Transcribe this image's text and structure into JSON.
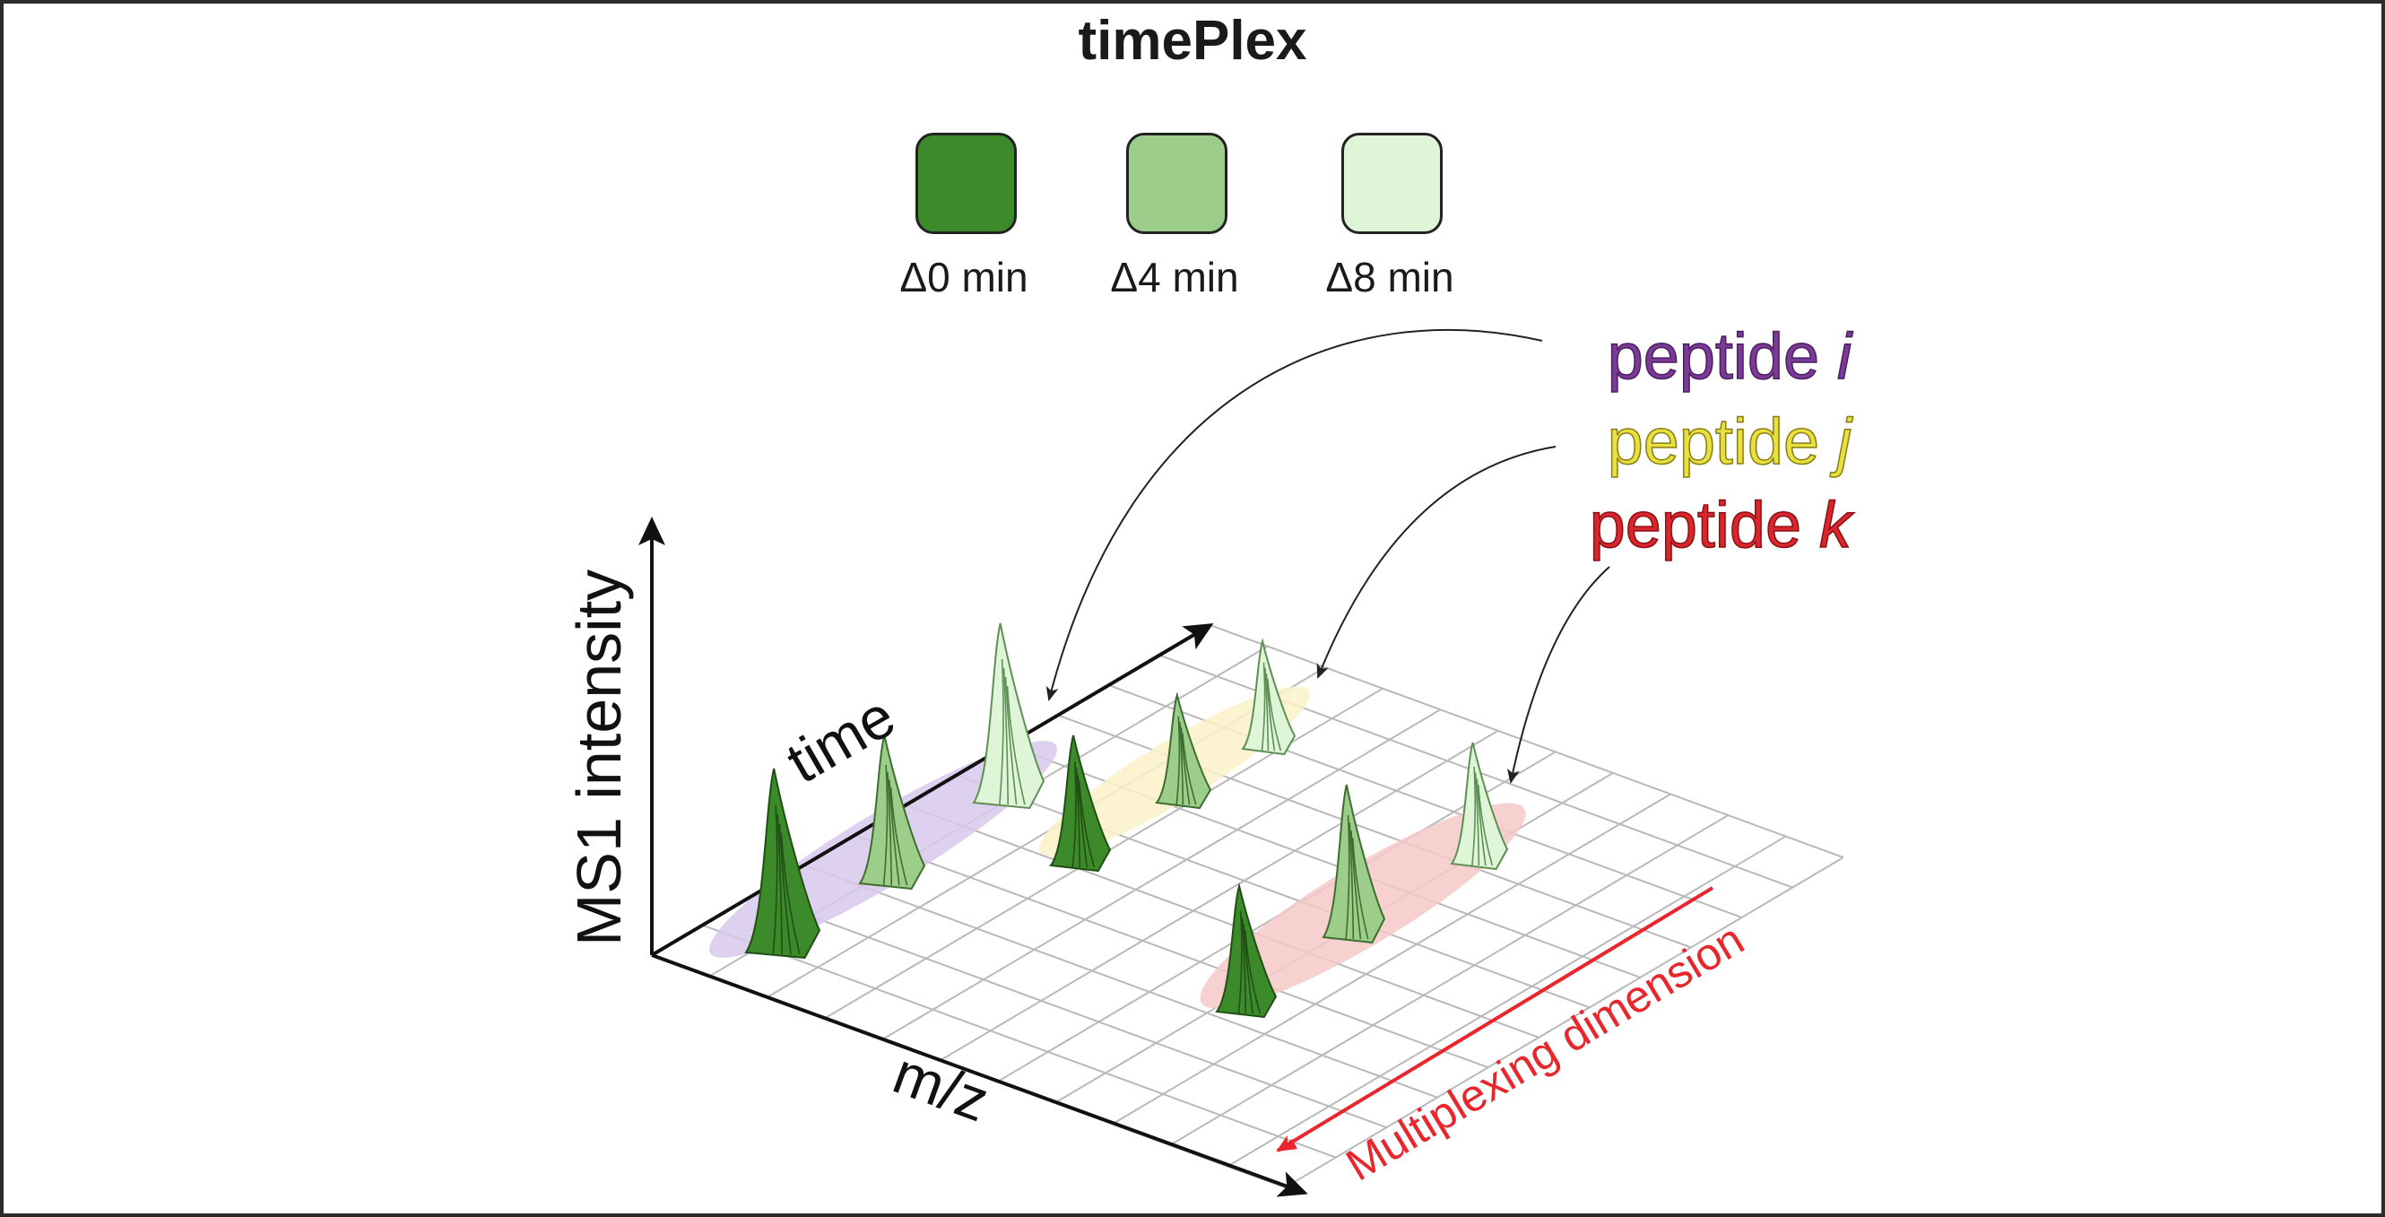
{
  "title": "timePlex",
  "legend": [
    {
      "label": "Δ0 min",
      "color": "#3d8a2a"
    },
    {
      "label": "Δ4 min",
      "color": "#9ccd8a"
    },
    {
      "label": "Δ8 min",
      "color": "#dff5d8"
    }
  ],
  "peptides": [
    {
      "word": "peptide",
      "letter": "i",
      "color": "#7a3a96",
      "highlight": "#d8c8ec"
    },
    {
      "word": "peptide",
      "letter": "j",
      "color": "#e8e040",
      "highlight": "#fbf1c8"
    },
    {
      "word": "peptide",
      "letter": "k",
      "color": "#d8262c",
      "highlight": "#f6c8c8"
    }
  ],
  "axes": {
    "y": "MS1 intensity",
    "time": "time",
    "mz": "m/z"
  },
  "multiplexing": {
    "label": "Multiplexing dimension",
    "color": "#e8262c"
  }
}
